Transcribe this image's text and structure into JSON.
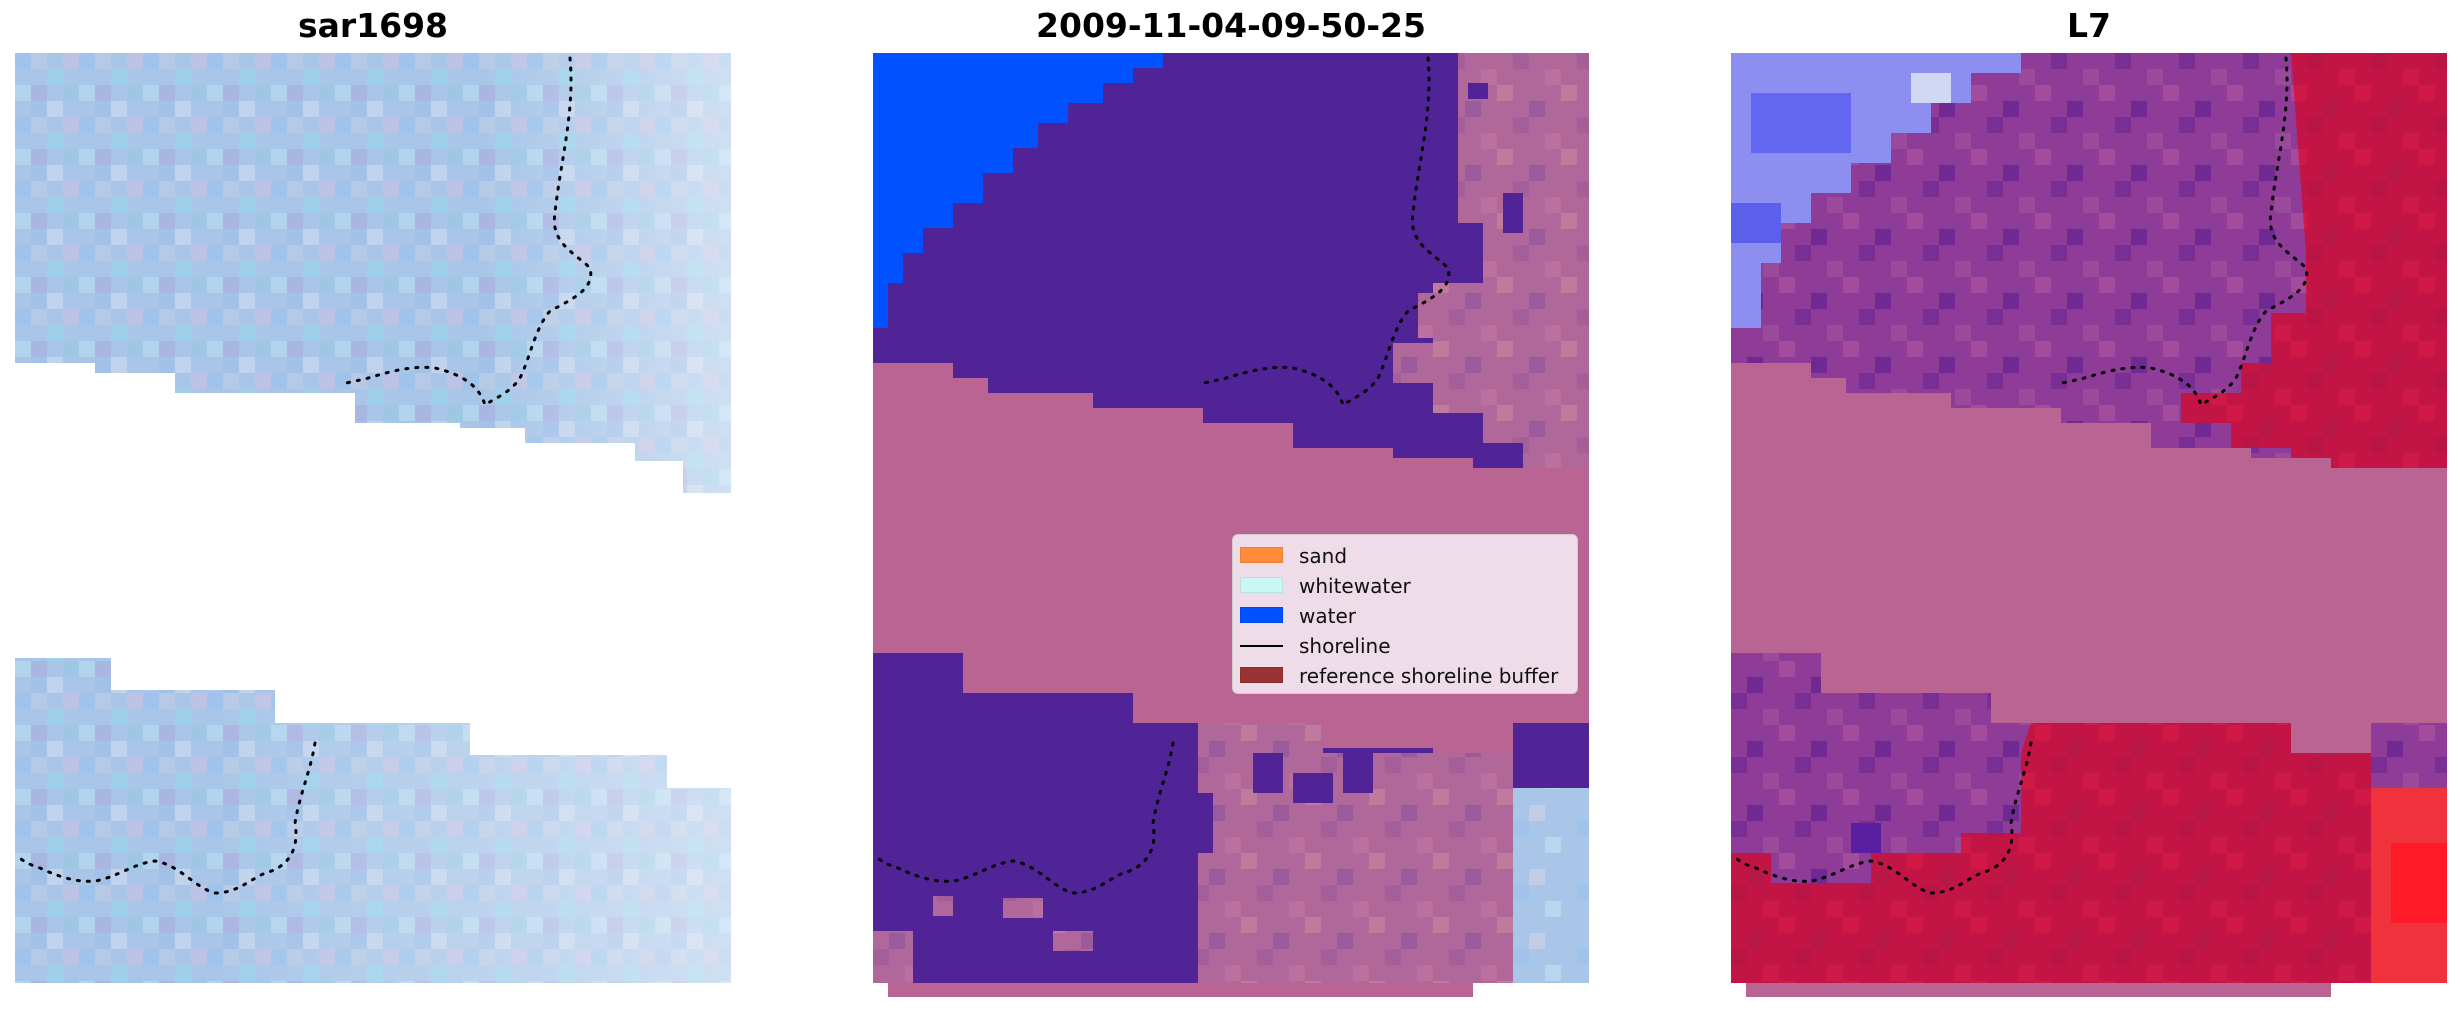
{
  "panels": [
    {
      "title": "sar1698"
    },
    {
      "title": "2009-11-04-09-50-25"
    },
    {
      "title": "L7"
    }
  ],
  "legend": {
    "items": [
      {
        "label": "sand",
        "color": "#ff8c3a",
        "kind": "patch"
      },
      {
        "label": "whitewater",
        "color": "#c8f7f5",
        "kind": "patch"
      },
      {
        "label": "water",
        "color": "#0051ff",
        "kind": "patch"
      },
      {
        "label": "shoreline",
        "color": "#000000",
        "kind": "line"
      },
      {
        "label": "reference shoreline buffer",
        "color": "#993333",
        "kind": "patch"
      }
    ]
  },
  "colors": {
    "sar_base": "#a9c6e8",
    "class_dark": "#502396",
    "buffer_overlay": "#ba6494",
    "water": "#0051ff",
    "l7_red": "#c31446",
    "l7_purple": "#8e3c97"
  }
}
